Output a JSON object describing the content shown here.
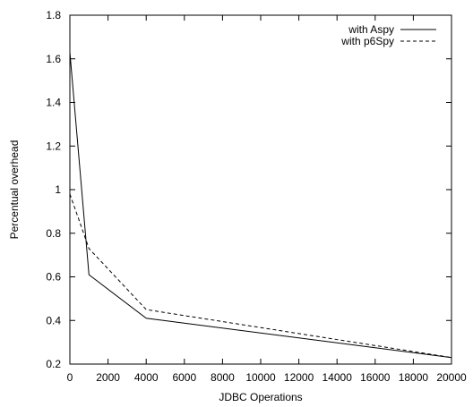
{
  "chart_data": {
    "type": "line",
    "xlabel": "JDBC Operations",
    "ylabel": "Percentual overhead",
    "xlim": [
      0,
      20000
    ],
    "ylim": [
      0.2,
      1.8
    ],
    "xticks": [
      0,
      2000,
      4000,
      6000,
      8000,
      10000,
      12000,
      14000,
      16000,
      18000,
      20000
    ],
    "yticks": [
      0.2,
      0.4,
      0.6,
      0.8,
      1.0,
      1.2,
      1.4,
      1.6,
      1.8
    ],
    "ytick_labels": [
      "0.2",
      "0.4",
      "0.6",
      "0.8",
      "1",
      "1.2",
      "1.4",
      "1.6",
      "1.8"
    ],
    "grid": false,
    "legend_position": "top-right",
    "series": [
      {
        "name": "with Aspy",
        "style": "solid",
        "x": [
          0,
          1000,
          4000,
          20000
        ],
        "y": [
          1.63,
          0.61,
          0.41,
          0.23
        ]
      },
      {
        "name": "with p6Spy",
        "style": "dashed",
        "x": [
          0,
          1000,
          4000,
          20000
        ],
        "y": [
          0.98,
          0.73,
          0.45,
          0.23
        ]
      }
    ]
  }
}
